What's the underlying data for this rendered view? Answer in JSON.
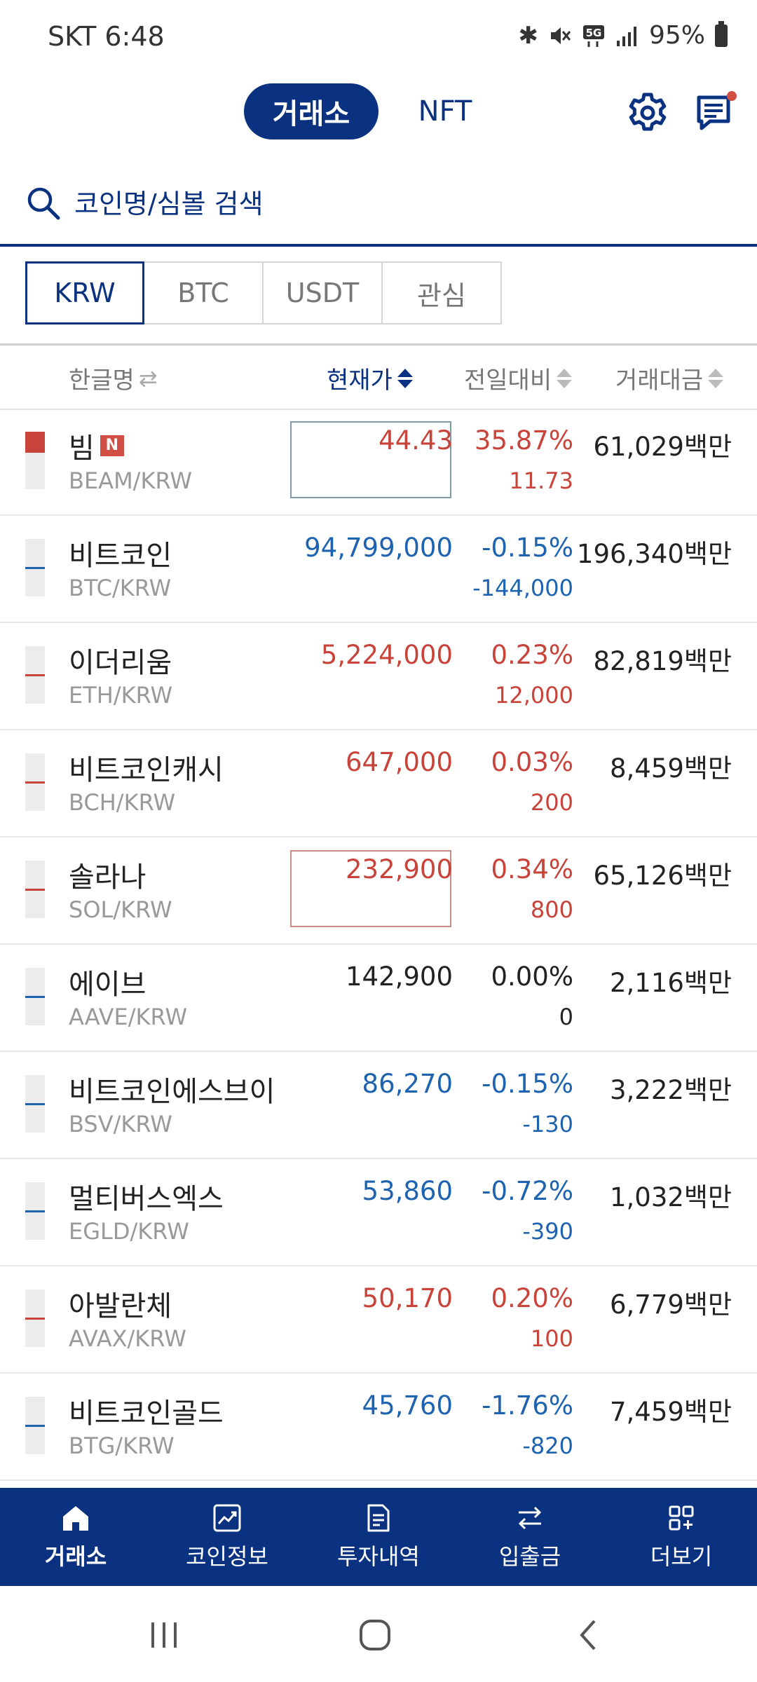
{
  "status_bar": {
    "carrier_time": "SKT 6:48",
    "battery": "95%",
    "icons": [
      "bluetooth-icon",
      "mute-icon",
      "5g-icon",
      "signal-icon",
      "battery-icon"
    ]
  },
  "header": {
    "tabs": [
      {
        "label": "거래소",
        "active": true
      },
      {
        "label": "NFT",
        "active": false
      }
    ],
    "icons": [
      "gear-icon",
      "chat-icon"
    ],
    "accent_color": "#0a3281",
    "notification_dot_color": "#d24f45"
  },
  "search": {
    "placeholder": "코인명/심볼 검색"
  },
  "market_tabs": [
    {
      "label": "KRW",
      "active": true
    },
    {
      "label": "BTC",
      "active": false
    },
    {
      "label": "USDT",
      "active": false
    },
    {
      "label": "관심",
      "active": false
    }
  ],
  "columns": {
    "name": "한글명",
    "price": "현재가",
    "change": "전일대비",
    "volume": "거래대금"
  },
  "rows": [
    {
      "name": "빔",
      "badge": "N",
      "symbol": "BEAM/KRW",
      "price": "44.43",
      "pct": "35.87%",
      "chg": "11.73",
      "volume": "61,029백만",
      "dir": "up",
      "highlight": true
    },
    {
      "name": "비트코인",
      "badge": "",
      "symbol": "BTC/KRW",
      "price": "94,799,000",
      "pct": "-0.15%",
      "chg": "-144,000",
      "volume": "196,340백만",
      "dir": "down",
      "highlight": false
    },
    {
      "name": "이더리움",
      "badge": "",
      "symbol": "ETH/KRW",
      "price": "5,224,000",
      "pct": "0.23%",
      "chg": "12,000",
      "volume": "82,819백만",
      "dir": "up",
      "highlight": false
    },
    {
      "name": "비트코인캐시",
      "badge": "",
      "symbol": "BCH/KRW",
      "price": "647,000",
      "pct": "0.03%",
      "chg": "200",
      "volume": "8,459백만",
      "dir": "up",
      "highlight": false
    },
    {
      "name": "솔라나",
      "badge": "",
      "symbol": "SOL/KRW",
      "price": "232,900",
      "pct": "0.34%",
      "chg": "800",
      "volume": "65,126백만",
      "dir": "up",
      "highlight": true
    },
    {
      "name": "에이브",
      "badge": "",
      "symbol": "AAVE/KRW",
      "price": "142,900",
      "pct": "0.00%",
      "chg": "0",
      "volume": "2,116백만",
      "dir": "flat",
      "highlight": false
    },
    {
      "name": "비트코인에스브이",
      "badge": "",
      "symbol": "BSV/KRW",
      "price": "86,270",
      "pct": "-0.15%",
      "chg": "-130",
      "volume": "3,222백만",
      "dir": "down",
      "highlight": false
    },
    {
      "name": "멀티버스엑스",
      "badge": "",
      "symbol": "EGLD/KRW",
      "price": "53,860",
      "pct": "-0.72%",
      "chg": "-390",
      "volume": "1,032백만",
      "dir": "down",
      "highlight": false
    },
    {
      "name": "아발란체",
      "badge": "",
      "symbol": "AVAX/KRW",
      "price": "50,170",
      "pct": "0.20%",
      "chg": "100",
      "volume": "6,779백만",
      "dir": "up",
      "highlight": false
    },
    {
      "name": "비트코인골드",
      "badge": "",
      "symbol": "BTG/KRW",
      "price": "45,760",
      "pct": "-1.76%",
      "chg": "-820",
      "volume": "7,459백만",
      "dir": "down",
      "highlight": false
    }
  ],
  "colors": {
    "up": "#c8433a",
    "down": "#1e63b0",
    "flat": "#222222"
  },
  "bottom_nav": [
    {
      "label": "거래소",
      "icon": "home-icon",
      "active": true
    },
    {
      "label": "코인정보",
      "icon": "chart-icon",
      "active": false
    },
    {
      "label": "투자내역",
      "icon": "document-icon",
      "active": false
    },
    {
      "label": "입출금",
      "icon": "transfer-icon",
      "active": false
    },
    {
      "label": "더보기",
      "icon": "grid-plus-icon",
      "active": false
    }
  ]
}
